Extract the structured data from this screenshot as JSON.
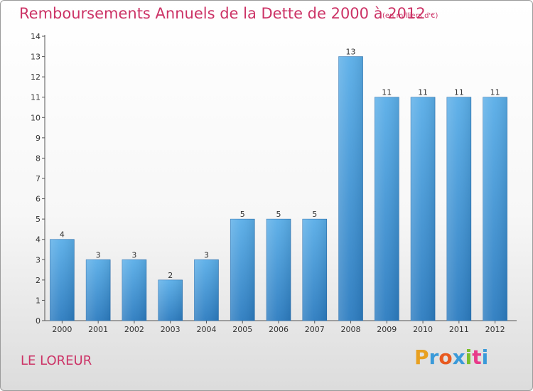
{
  "chart_data": {
    "type": "bar",
    "title": "Remboursements Annuels de la Dette de 2000 à 2012",
    "subtitle": "(en milliers d'€)",
    "xlabel": "",
    "ylabel": "",
    "categories": [
      "2000",
      "2001",
      "2002",
      "2003",
      "2004",
      "2005",
      "2006",
      "2007",
      "2008",
      "2009",
      "2010",
      "2011",
      "2012"
    ],
    "values": [
      4,
      3,
      3,
      2,
      3,
      5,
      5,
      5,
      13,
      11,
      11,
      11,
      11
    ],
    "ylim": [
      0,
      14
    ],
    "yticks": [
      0,
      1,
      2,
      3,
      4,
      5,
      6,
      7,
      8,
      9,
      10,
      11,
      12,
      13,
      14
    ],
    "grid": false,
    "legend": "none",
    "bar_color_top": "#5aaee8",
    "bar_color_bottom": "#2c7cc0"
  },
  "footer": {
    "city": "LE LOREUR",
    "logo_text": "Proxiti"
  },
  "colors": {
    "title": "#cc3366",
    "logo": [
      "#e8a020",
      "#3a9ad9",
      "#e85a20",
      "#3a9ad9",
      "#7cbf2a",
      "#e83a8a",
      "#3a9ad9"
    ]
  }
}
